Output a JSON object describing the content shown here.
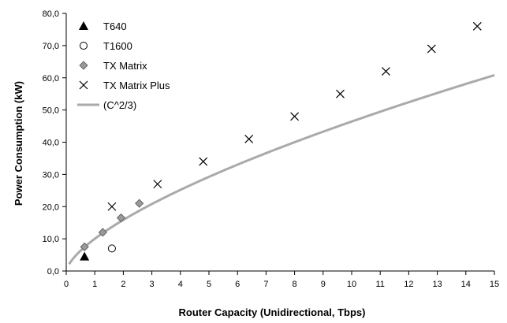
{
  "chart_data": {
    "type": "scatter",
    "xlabel": "Router Capacity  (Unidirectional,  Tbps)",
    "ylabel": "Power Consumption  (kW)",
    "xlim": [
      0,
      15
    ],
    "ylim": [
      0,
      80
    ],
    "x_ticks": [
      "0",
      "1",
      "2",
      "3",
      "4",
      "5",
      "6",
      "7",
      "8",
      "9",
      "10",
      "11",
      "12",
      "13",
      "14",
      "15"
    ],
    "y_ticks": [
      "0,0",
      "10,0",
      "20,0",
      "30,0",
      "40,0",
      "50,0",
      "60,0",
      "70,0",
      "80,0"
    ],
    "grid": false,
    "legend_position": "top-left",
    "series": [
      {
        "name": "T640",
        "marker": "filled-triangle",
        "color": "#000000",
        "points": [
          [
            0.64,
            4.5
          ]
        ]
      },
      {
        "name": "T1600",
        "marker": "open-circle",
        "color": "#000000",
        "points": [
          [
            1.6,
            7.0
          ]
        ]
      },
      {
        "name": "TX Matrix",
        "marker": "gray-diamond",
        "color": "#999999",
        "points": [
          [
            0.64,
            7.5
          ],
          [
            1.28,
            12.0
          ],
          [
            1.92,
            16.5
          ],
          [
            2.56,
            21.0
          ]
        ]
      },
      {
        "name": "TX Matrix Plus",
        "marker": "cross",
        "color": "#000000",
        "points": [
          [
            1.6,
            20.0
          ],
          [
            3.2,
            27.0
          ],
          [
            4.8,
            34.0
          ],
          [
            6.4,
            41.0
          ],
          [
            8.0,
            48.0
          ],
          [
            9.6,
            55.0
          ],
          [
            11.2,
            62.0
          ],
          [
            12.8,
            69.0
          ],
          [
            14.4,
            76.0
          ]
        ]
      },
      {
        "name": "(C^2/3)",
        "marker": "line",
        "color": "#aaaaaa",
        "curve": {
          "formula": "y = 10 * x^(2/3)",
          "x_from": 0.1,
          "x_to": 15
        }
      }
    ]
  }
}
